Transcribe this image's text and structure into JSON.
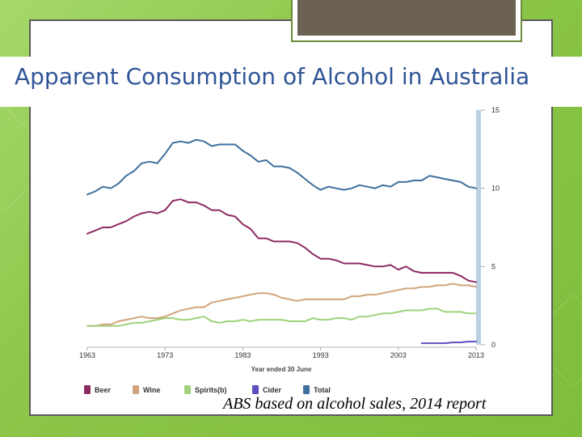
{
  "slide": {
    "title": "Apparent Consumption of Alcohol in Australia",
    "source": "ABS based on alcohol sales, 2014 report"
  },
  "colors": {
    "title": "#2f5597",
    "beer": "#8e2a62",
    "wine": "#d1a57c",
    "spirits": "#9fd27b",
    "cider": "#5b4fc0",
    "total": "#3e6f9e"
  },
  "chart_data": {
    "type": "line",
    "title": "",
    "xlabel": "Year ended 30 June",
    "ylabel": "",
    "xlim": [
      1963,
      2013
    ],
    "ylim": [
      0,
      15
    ],
    "x_ticks": [
      "1963",
      "1973",
      "1983",
      "1993",
      "2003",
      "2013"
    ],
    "y_ticks": [
      "0",
      "5",
      "10",
      "15"
    ],
    "y_axis_position": "right",
    "legend_position": "bottom",
    "series": [
      {
        "name": "Beer",
        "key": "beer",
        "x": [
          1963,
          1964,
          1965,
          1966,
          1967,
          1968,
          1969,
          1970,
          1971,
          1972,
          1973,
          1974,
          1975,
          1976,
          1977,
          1978,
          1979,
          1980,
          1981,
          1982,
          1983,
          1984,
          1985,
          1986,
          1987,
          1988,
          1989,
          1990,
          1991,
          1992,
          1993,
          1994,
          1995,
          1996,
          1997,
          1998,
          1999,
          2000,
          2001,
          2002,
          2003,
          2004,
          2005,
          2006,
          2007,
          2008,
          2009,
          2010,
          2011,
          2012,
          2013
        ],
        "values": [
          7.1,
          7.3,
          7.5,
          7.5,
          7.7,
          7.9,
          8.2,
          8.4,
          8.5,
          8.4,
          8.6,
          9.2,
          9.3,
          9.1,
          9.1,
          8.9,
          8.6,
          8.6,
          8.3,
          8.2,
          7.7,
          7.4,
          6.8,
          6.8,
          6.6,
          6.6,
          6.6,
          6.5,
          6.2,
          5.8,
          5.5,
          5.5,
          5.4,
          5.2,
          5.2,
          5.2,
          5.1,
          5.0,
          5.0,
          5.1,
          4.8,
          5.0,
          4.7,
          4.6,
          4.6,
          4.6,
          4.6,
          4.6,
          4.4,
          4.1,
          4.0
        ]
      },
      {
        "name": "Wine",
        "key": "wine",
        "x": [
          1963,
          1964,
          1965,
          1966,
          1967,
          1968,
          1969,
          1970,
          1971,
          1972,
          1973,
          1974,
          1975,
          1976,
          1977,
          1978,
          1979,
          1980,
          1981,
          1982,
          1983,
          1984,
          1985,
          1986,
          1987,
          1988,
          1989,
          1990,
          1991,
          1992,
          1993,
          1994,
          1995,
          1996,
          1997,
          1998,
          1999,
          2000,
          2001,
          2002,
          2003,
          2004,
          2005,
          2006,
          2007,
          2008,
          2009,
          2010,
          2011,
          2012,
          2013
        ],
        "values": [
          1.2,
          1.2,
          1.3,
          1.3,
          1.5,
          1.6,
          1.7,
          1.8,
          1.7,
          1.7,
          1.8,
          2.0,
          2.2,
          2.3,
          2.4,
          2.4,
          2.7,
          2.8,
          2.9,
          3.0,
          3.1,
          3.2,
          3.3,
          3.3,
          3.2,
          3.0,
          2.9,
          2.8,
          2.9,
          2.9,
          2.9,
          2.9,
          2.9,
          2.9,
          3.1,
          3.1,
          3.2,
          3.2,
          3.3,
          3.4,
          3.5,
          3.6,
          3.6,
          3.7,
          3.7,
          3.8,
          3.8,
          3.9,
          3.8,
          3.8,
          3.7
        ]
      },
      {
        "name": "Spirits(b)",
        "key": "spirits",
        "x": [
          1963,
          1964,
          1965,
          1966,
          1967,
          1968,
          1969,
          1970,
          1971,
          1972,
          1973,
          1974,
          1975,
          1976,
          1977,
          1978,
          1979,
          1980,
          1981,
          1982,
          1983,
          1984,
          1985,
          1986,
          1987,
          1988,
          1989,
          1990,
          1991,
          1992,
          1993,
          1994,
          1995,
          1996,
          1997,
          1998,
          1999,
          2000,
          2001,
          2002,
          2003,
          2004,
          2005,
          2006,
          2007,
          2008,
          2009,
          2010,
          2011,
          2012,
          2013
        ],
        "values": [
          1.2,
          1.2,
          1.2,
          1.2,
          1.2,
          1.3,
          1.4,
          1.4,
          1.5,
          1.6,
          1.7,
          1.7,
          1.6,
          1.6,
          1.7,
          1.8,
          1.5,
          1.4,
          1.5,
          1.5,
          1.6,
          1.5,
          1.6,
          1.6,
          1.6,
          1.6,
          1.5,
          1.5,
          1.5,
          1.7,
          1.6,
          1.6,
          1.7,
          1.7,
          1.6,
          1.8,
          1.8,
          1.9,
          2.0,
          2.0,
          2.1,
          2.2,
          2.2,
          2.2,
          2.3,
          2.3,
          2.1,
          2.1,
          2.1,
          2.0,
          2.0
        ]
      },
      {
        "name": "Cider",
        "key": "cider",
        "x": [
          2006,
          2007,
          2008,
          2009,
          2010,
          2011,
          2012,
          2013
        ],
        "values": [
          0.1,
          0.1,
          0.1,
          0.1,
          0.15,
          0.15,
          0.2,
          0.2
        ]
      },
      {
        "name": "Total",
        "key": "total",
        "x": [
          1963,
          1964,
          1965,
          1966,
          1967,
          1968,
          1969,
          1970,
          1971,
          1972,
          1973,
          1974,
          1975,
          1976,
          1977,
          1978,
          1979,
          1980,
          1981,
          1982,
          1983,
          1984,
          1985,
          1986,
          1987,
          1988,
          1989,
          1990,
          1991,
          1992,
          1993,
          1994,
          1995,
          1996,
          1997,
          1998,
          1999,
          2000,
          2001,
          2002,
          2003,
          2004,
          2005,
          2006,
          2007,
          2008,
          2009,
          2010,
          2011,
          2012,
          2013
        ],
        "values": [
          9.6,
          9.8,
          10.1,
          10.0,
          10.3,
          10.8,
          11.1,
          11.6,
          11.7,
          11.6,
          12.2,
          12.9,
          13.0,
          12.9,
          13.1,
          13.0,
          12.7,
          12.8,
          12.8,
          12.8,
          12.4,
          12.1,
          11.7,
          11.8,
          11.4,
          11.4,
          11.3,
          11.0,
          10.6,
          10.2,
          9.9,
          10.1,
          10.0,
          9.9,
          10.0,
          10.2,
          10.1,
          10.0,
          10.2,
          10.1,
          10.4,
          10.4,
          10.5,
          10.5,
          10.8,
          10.7,
          10.6,
          10.5,
          10.4,
          10.1,
          10.0
        ]
      }
    ]
  }
}
